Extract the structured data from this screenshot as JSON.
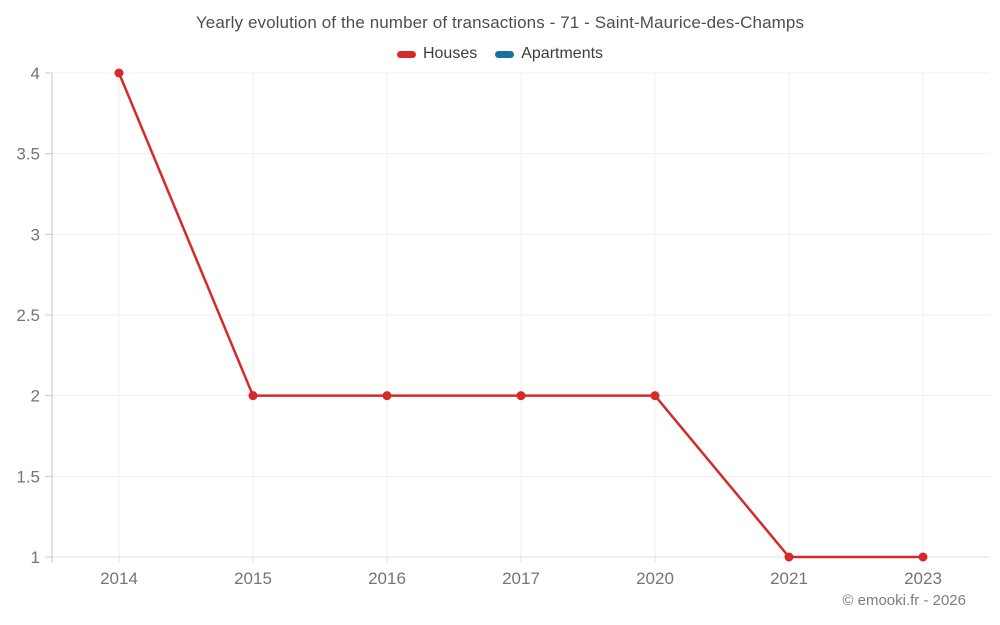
{
  "chart": {
    "title": "Yearly evolution of the number of transactions - 71 - Saint-Maurice-des-Champs"
  },
  "legend": {
    "items": [
      {
        "label": "Houses",
        "color": "#d62a2a"
      },
      {
        "label": "Apartments",
        "color": "#17709f"
      }
    ]
  },
  "footer": {
    "copyright": "© emooki.fr - 2026"
  },
  "chart_data": {
    "type": "line",
    "title": "Yearly evolution of the number of transactions - 71 - Saint-Maurice-des-Champs",
    "categories": [
      "2014",
      "2015",
      "2016",
      "2017",
      "2020",
      "2021",
      "2023"
    ],
    "series": [
      {
        "name": "Houses",
        "color": "#d62a2a",
        "values": [
          4,
          2,
          2,
          2,
          2,
          1,
          1
        ]
      },
      {
        "name": "Apartments",
        "color": "#17709f",
        "values": []
      }
    ],
    "yticks": [
      1,
      1.5,
      2,
      2.5,
      3,
      3.5,
      4
    ],
    "ylim": [
      1,
      4
    ],
    "xlabel": "",
    "ylabel": "",
    "grid": true,
    "legend_position": "top"
  }
}
